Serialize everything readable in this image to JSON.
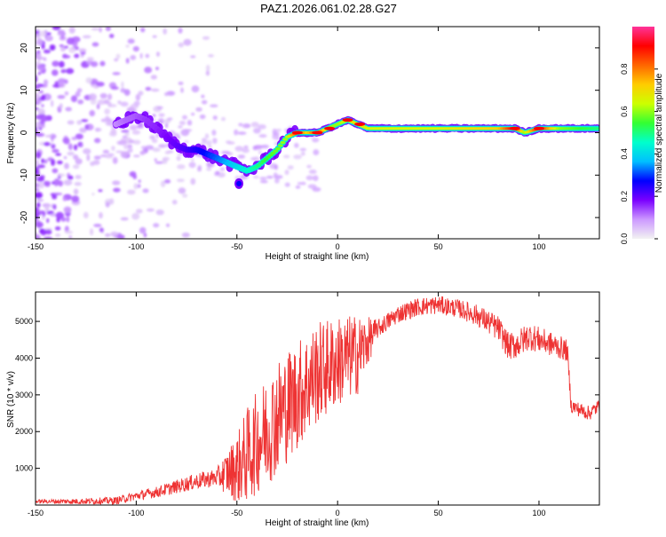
{
  "title": "PAZ1.2026.061.02.28.G27",
  "chart_data": [
    {
      "type": "heatmap",
      "xlabel": "Height of straight line (km)",
      "ylabel": "Frequency (Hz)",
      "xlim": [
        -150,
        130
      ],
      "ylim": [
        -25,
        25
      ],
      "xticks": [
        -150,
        -100,
        -50,
        0,
        50,
        100
      ],
      "yticks": [
        -20,
        -10,
        0,
        10,
        20
      ],
      "colorbar": {
        "label": "Normalized spectral amplitude",
        "range": [
          0,
          1
        ],
        "ticks": [
          "0.0",
          "0.2",
          "0.4",
          "0.6",
          "0.8"
        ],
        "stops": [
          "#f2f2f2",
          "#cc99ff",
          "#7a00ff",
          "#0000ff",
          "#00bfff",
          "#00ffcc",
          "#33ff33",
          "#ccff00",
          "#ffcc00",
          "#ff6600",
          "#ff0000",
          "#ff3399"
        ]
      },
      "ridge": [
        {
          "x": -110,
          "f": 2,
          "a": 0.1
        },
        {
          "x": -105,
          "f": 3,
          "a": 0.12
        },
        {
          "x": -100,
          "f": 4,
          "a": 0.13
        },
        {
          "x": -95,
          "f": 3,
          "a": 0.15
        },
        {
          "x": -90,
          "f": 1,
          "a": 0.16
        },
        {
          "x": -85,
          "f": -1,
          "a": 0.18
        },
        {
          "x": -80,
          "f": -3,
          "a": 0.2
        },
        {
          "x": -75,
          "f": -4,
          "a": 0.22
        },
        {
          "x": -70,
          "f": -4,
          "a": 0.25
        },
        {
          "x": -65,
          "f": -5,
          "a": 0.28
        },
        {
          "x": -60,
          "f": -6,
          "a": 0.32
        },
        {
          "x": -55,
          "f": -7,
          "a": 0.36
        },
        {
          "x": -50,
          "f": -8,
          "a": 0.4
        },
        {
          "x": -45,
          "f": -9,
          "a": 0.45
        },
        {
          "x": -40,
          "f": -8,
          "a": 0.5
        },
        {
          "x": -35,
          "f": -6,
          "a": 0.55
        },
        {
          "x": -30,
          "f": -4,
          "a": 0.58
        },
        {
          "x": -25,
          "f": -1,
          "a": 0.62
        },
        {
          "x": -20,
          "f": 0,
          "a": 0.9
        },
        {
          "x": -15,
          "f": 0,
          "a": 0.7
        },
        {
          "x": -10,
          "f": 0,
          "a": 0.9
        },
        {
          "x": -5,
          "f": 1,
          "a": 0.6
        },
        {
          "x": 0,
          "f": 2,
          "a": 0.6
        },
        {
          "x": 5,
          "f": 3,
          "a": 0.65
        },
        {
          "x": 10,
          "f": 2,
          "a": 0.7
        },
        {
          "x": 15,
          "f": 1,
          "a": 0.65
        },
        {
          "x": 20,
          "f": 1,
          "a": 0.65
        },
        {
          "x": 30,
          "f": 1,
          "a": 0.65
        },
        {
          "x": 40,
          "f": 1,
          "a": 0.65
        },
        {
          "x": 50,
          "f": 1,
          "a": 0.65
        },
        {
          "x": 60,
          "f": 1,
          "a": 0.68
        },
        {
          "x": 70,
          "f": 1,
          "a": 0.7
        },
        {
          "x": 80,
          "f": 1,
          "a": 0.72
        },
        {
          "x": 88,
          "f": 1,
          "a": 0.92
        },
        {
          "x": 93,
          "f": 0,
          "a": 0.6
        },
        {
          "x": 100,
          "f": 1,
          "a": 0.92
        },
        {
          "x": 110,
          "f": 1,
          "a": 0.6
        },
        {
          "x": 120,
          "f": 1,
          "a": 0.55
        },
        {
          "x": 130,
          "f": 1,
          "a": 0.5
        }
      ]
    },
    {
      "type": "line",
      "xlabel": "Height of straight line (km)",
      "ylabel": "SNR (10 * v/v)",
      "xlim": [
        -150,
        130
      ],
      "ylim": [
        0,
        5800
      ],
      "xticks": [
        -150,
        -100,
        -50,
        0,
        50,
        100
      ],
      "yticks": [
        1000,
        2000,
        3000,
        4000,
        5000
      ],
      "color": "#ee3333",
      "envelope": {
        "x": [
          -150,
          -130,
          -110,
          -100,
          -90,
          -80,
          -70,
          -60,
          -50,
          -40,
          -30,
          -20,
          -10,
          0,
          10,
          20,
          30,
          40,
          50,
          60,
          70,
          80,
          85,
          90,
          95,
          100,
          105,
          110,
          114,
          116,
          120,
          125,
          130
        ],
        "y": [
          100,
          100,
          120,
          250,
          350,
          500,
          650,
          750,
          1000,
          1700,
          2400,
          3000,
          3600,
          3900,
          4100,
          4800,
          5200,
          5400,
          5450,
          5350,
          5150,
          4800,
          4300,
          4400,
          4600,
          4500,
          4400,
          4300,
          4200,
          2700,
          2600,
          2500,
          2700
        ]
      },
      "noise": {
        "x": [
          -150,
          -100,
          -60,
          -45,
          -30,
          -10,
          10,
          20,
          60,
          90,
          114,
          116,
          130
        ],
        "amp": [
          50,
          120,
          250,
          1300,
          1600,
          1400,
          1100,
          250,
          250,
          400,
          300,
          200,
          200
        ]
      }
    }
  ]
}
